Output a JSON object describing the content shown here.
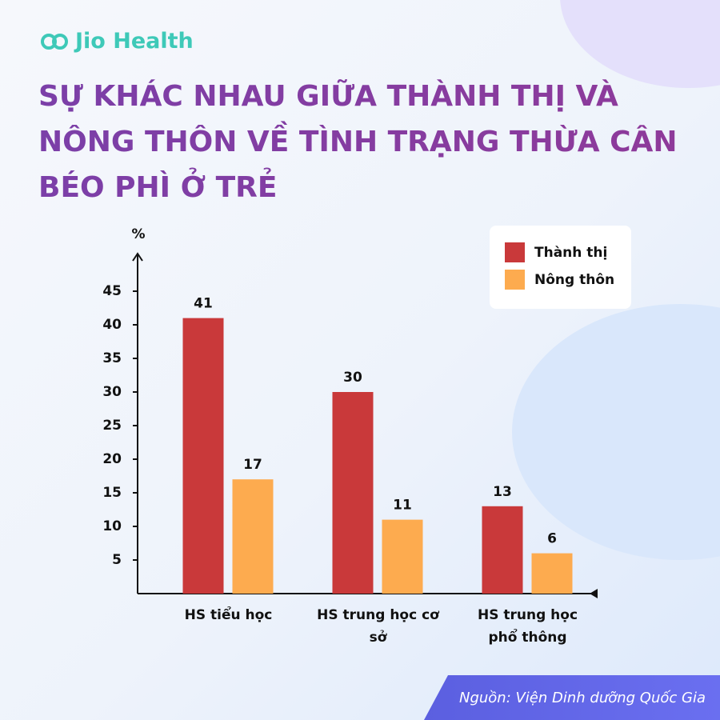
{
  "brand": "Jio Health",
  "chart_data": {
    "type": "bar",
    "title": "SỰ KHÁC NHAU GIỮA THÀNH THỊ VÀ NÔNG THÔN VỀ TÌNH TRẠNG THỪA CÂN BÉO PHÌ Ở TRẺ",
    "y_label": "%",
    "categories": [
      "HS tiểu học",
      "HS trung học cơ sở",
      "HS trung học phổ thông"
    ],
    "series": [
      {
        "name": "Thành thị",
        "color": "#c9393a",
        "values": [
          41,
          30,
          13
        ]
      },
      {
        "name": "Nông thôn",
        "color": "#fdab4f",
        "values": [
          17,
          11,
          6
        ]
      }
    ],
    "ylim": [
      0,
      50
    ],
    "yticks": [
      5,
      10,
      15,
      20,
      25,
      30,
      35,
      40,
      45
    ],
    "legend": "top-right",
    "source": "Nguồn: Viện Dinh dưỡng Quốc Gia"
  }
}
